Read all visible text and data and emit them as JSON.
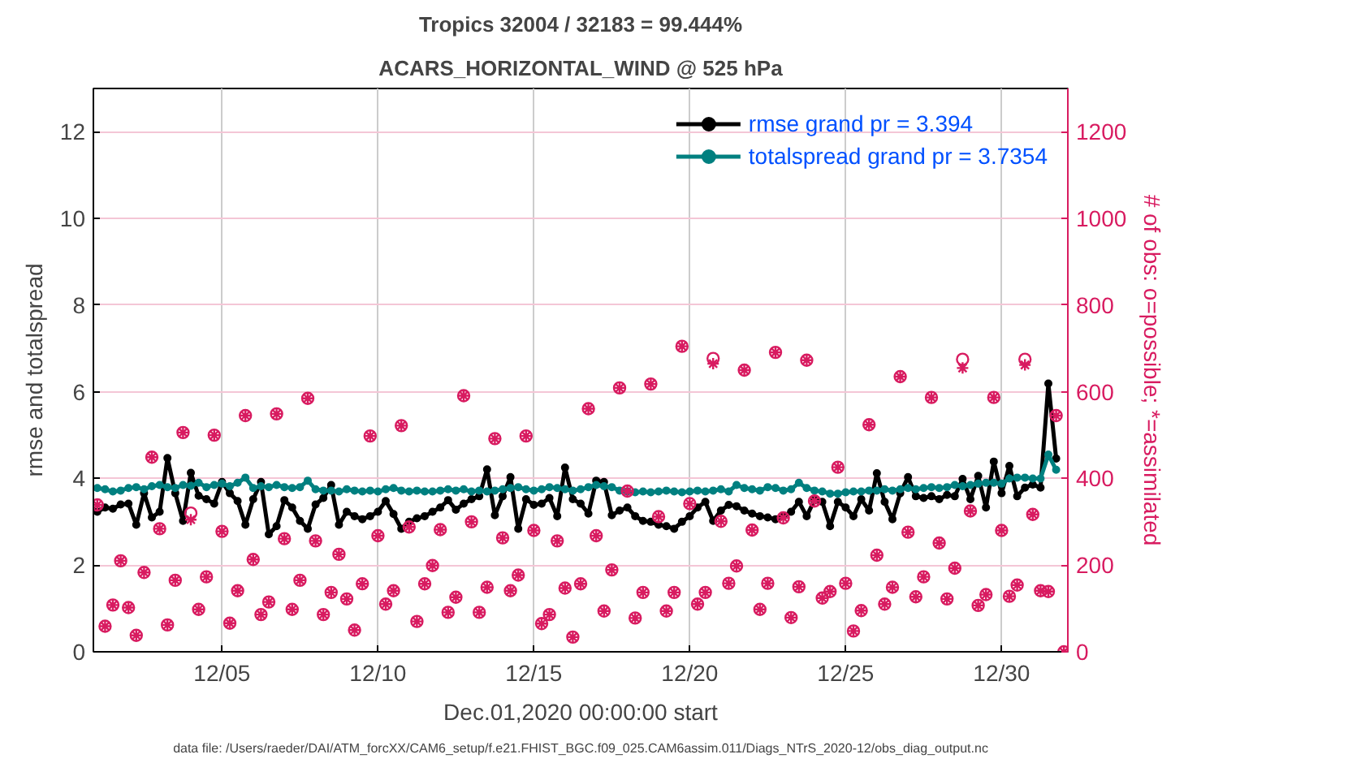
{
  "chart_data": {
    "type": "line",
    "title": "Tropics 32004 / 32183 = 99.444%",
    "subtitle": "ACARS_HORIZONTAL_WIND @ 525 hPa",
    "xlabel": "Dec.01,2020 00:00:00 start",
    "ylabel": "rmse and totalspread",
    "y2label": "# of obs: o=possible; *=assimilated",
    "annotations": [
      "data file: /Users/raeder/DAI/ATM_forcXX/CAM6_setup/f.e21.FHIST_BGC.f09_025.CAM6assim.011/Diags_NTrS_2020-12/obs_diag_output.nc"
    ],
    "x": [
      "2020-12-01T00:00",
      "2020-12-01T06:00",
      "2020-12-01T12:00",
      "2020-12-01T18:00",
      "2020-12-02T00:00",
      "2020-12-02T06:00",
      "2020-12-02T12:00",
      "2020-12-02T18:00",
      "2020-12-03T00:00",
      "2020-12-03T06:00",
      "2020-12-03T12:00",
      "2020-12-03T18:00",
      "2020-12-04T00:00",
      "2020-12-04T06:00",
      "2020-12-04T12:00",
      "2020-12-04T18:00",
      "2020-12-05T00:00",
      "2020-12-05T06:00",
      "2020-12-05T12:00",
      "2020-12-05T18:00",
      "2020-12-06T00:00",
      "2020-12-06T06:00",
      "2020-12-06T12:00",
      "2020-12-06T18:00",
      "2020-12-07T00:00",
      "2020-12-07T06:00",
      "2020-12-07T12:00",
      "2020-12-07T18:00",
      "2020-12-08T00:00",
      "2020-12-08T06:00",
      "2020-12-08T12:00",
      "2020-12-08T18:00",
      "2020-12-09T00:00",
      "2020-12-09T06:00",
      "2020-12-09T12:00",
      "2020-12-09T18:00",
      "2020-12-10T00:00",
      "2020-12-10T06:00",
      "2020-12-10T12:00",
      "2020-12-10T18:00",
      "2020-12-11T00:00",
      "2020-12-11T06:00",
      "2020-12-11T12:00",
      "2020-12-11T18:00",
      "2020-12-12T00:00",
      "2020-12-12T06:00",
      "2020-12-12T12:00",
      "2020-12-12T18:00",
      "2020-12-13T00:00",
      "2020-12-13T06:00",
      "2020-12-13T12:00",
      "2020-12-13T18:00",
      "2020-12-14T00:00",
      "2020-12-14T06:00",
      "2020-12-14T12:00",
      "2020-12-14T18:00",
      "2020-12-15T00:00",
      "2020-12-15T06:00",
      "2020-12-15T12:00",
      "2020-12-15T18:00",
      "2020-12-16T00:00",
      "2020-12-16T06:00",
      "2020-12-16T12:00",
      "2020-12-16T18:00",
      "2020-12-17T00:00",
      "2020-12-17T06:00",
      "2020-12-17T12:00",
      "2020-12-17T18:00",
      "2020-12-18T00:00",
      "2020-12-18T06:00",
      "2020-12-18T12:00",
      "2020-12-18T18:00",
      "2020-12-19T00:00",
      "2020-12-19T06:00",
      "2020-12-19T12:00",
      "2020-12-19T18:00",
      "2020-12-20T00:00",
      "2020-12-20T06:00",
      "2020-12-20T12:00",
      "2020-12-20T18:00",
      "2020-12-21T00:00",
      "2020-12-21T06:00",
      "2020-12-21T12:00",
      "2020-12-21T18:00",
      "2020-12-22T00:00",
      "2020-12-22T06:00",
      "2020-12-22T12:00",
      "2020-12-22T18:00",
      "2020-12-23T00:00",
      "2020-12-23T06:00",
      "2020-12-23T12:00",
      "2020-12-23T18:00",
      "2020-12-24T00:00",
      "2020-12-24T06:00",
      "2020-12-24T12:00",
      "2020-12-24T18:00",
      "2020-12-25T00:00",
      "2020-12-25T06:00",
      "2020-12-25T12:00",
      "2020-12-25T18:00",
      "2020-12-26T00:00",
      "2020-12-26T06:00",
      "2020-12-26T12:00",
      "2020-12-26T18:00",
      "2020-12-27T00:00",
      "2020-12-27T06:00",
      "2020-12-27T12:00",
      "2020-12-27T18:00",
      "2020-12-28T00:00",
      "2020-12-28T06:00",
      "2020-12-28T12:00",
      "2020-12-28T18:00",
      "2020-12-29T00:00",
      "2020-12-29T06:00",
      "2020-12-29T12:00",
      "2020-12-29T18:00",
      "2020-12-30T00:00",
      "2020-12-30T06:00",
      "2020-12-30T12:00",
      "2020-12-30T18:00",
      "2020-12-31T00:00",
      "2020-12-31T06:00",
      "2020-12-31T12:00",
      "2020-12-31T18:00",
      "2021-01-01T00:00"
    ],
    "xlim": [
      "2020-11-30T21:00",
      "2021-01-01T03:00"
    ],
    "xticks": [
      {
        "value": "2020-12-05",
        "label": "12/05"
      },
      {
        "value": "2020-12-10",
        "label": "12/10"
      },
      {
        "value": "2020-12-15",
        "label": "12/15"
      },
      {
        "value": "2020-12-20",
        "label": "12/20"
      },
      {
        "value": "2020-12-25",
        "label": "12/25"
      },
      {
        "value": "2020-12-30",
        "label": "12/30"
      }
    ],
    "ylim": [
      0,
      13
    ],
    "yticks": [
      0,
      2,
      4,
      6,
      8,
      10,
      12
    ],
    "y2lim": [
      0,
      1300
    ],
    "y2ticks": [
      0,
      200,
      400,
      600,
      800,
      1000,
      1200
    ],
    "grid": true,
    "legend": "top right",
    "series": [
      {
        "name": "rmse grand pr = 3.394",
        "marker": "circle",
        "color": "#000000",
        "values": [
          3.23,
          3.33,
          3.3,
          3.4,
          3.42,
          2.93,
          3.66,
          3.1,
          3.23,
          4.47,
          3.66,
          3.02,
          4.13,
          3.6,
          3.52,
          3.42,
          3.92,
          3.66,
          3.48,
          2.93,
          3.52,
          3.92,
          2.71,
          2.9,
          3.5,
          3.33,
          3.02,
          2.84,
          3.4,
          3.55,
          3.85,
          2.93,
          3.23,
          3.13,
          3.06,
          3.13,
          3.23,
          3.48,
          3.18,
          2.84,
          3.0,
          3.08,
          3.13,
          3.23,
          3.33,
          3.5,
          3.28,
          3.42,
          3.52,
          3.59,
          4.21,
          3.15,
          3.59,
          4.03,
          2.84,
          3.52,
          3.39,
          3.42,
          3.55,
          3.13,
          4.25,
          3.52,
          3.42,
          3.19,
          3.95,
          3.92,
          3.15,
          3.26,
          3.33,
          3.13,
          3.02,
          3.0,
          2.93,
          2.9,
          2.84,
          3.0,
          3.13,
          3.33,
          3.46,
          3.02,
          3.26,
          3.39,
          3.36,
          3.26,
          3.19,
          3.13,
          3.1,
          3.06,
          3.13,
          3.23,
          3.46,
          3.13,
          3.5,
          3.46,
          2.9,
          3.46,
          3.33,
          3.13,
          3.52,
          3.26,
          4.12,
          3.46,
          3.06,
          3.66,
          4.03,
          3.59,
          3.55,
          3.59,
          3.52,
          3.62,
          3.59,
          3.99,
          3.52,
          4.06,
          3.33,
          4.39,
          3.66,
          4.29,
          3.59,
          3.79,
          3.86,
          3.79,
          6.19,
          4.46,
          null
        ]
      },
      {
        "name": "totalspread grand pr = 3.7354",
        "marker": "circle",
        "color": "#008080",
        "values": [
          3.78,
          3.75,
          3.7,
          3.72,
          3.78,
          3.8,
          3.75,
          3.82,
          3.85,
          3.8,
          3.78,
          3.85,
          3.83,
          3.9,
          3.8,
          3.85,
          3.88,
          3.82,
          3.9,
          4.02,
          3.78,
          3.82,
          3.8,
          3.85,
          3.8,
          3.78,
          3.8,
          3.95,
          3.75,
          3.72,
          3.72,
          3.7,
          3.75,
          3.72,
          3.7,
          3.72,
          3.7,
          3.75,
          3.78,
          3.72,
          3.7,
          3.72,
          3.7,
          3.7,
          3.72,
          3.75,
          3.72,
          3.75,
          3.7,
          3.72,
          3.7,
          3.72,
          3.75,
          3.78,
          3.8,
          3.75,
          3.72,
          3.75,
          3.8,
          3.78,
          3.75,
          3.72,
          3.75,
          3.8,
          3.85,
          3.82,
          3.8,
          3.72,
          3.7,
          3.68,
          3.7,
          3.68,
          3.7,
          3.72,
          3.7,
          3.68,
          3.7,
          3.72,
          3.7,
          3.72,
          3.75,
          3.7,
          3.85,
          3.78,
          3.75,
          3.72,
          3.8,
          3.78,
          3.72,
          3.75,
          3.9,
          3.78,
          3.72,
          3.7,
          3.65,
          3.65,
          3.68,
          3.7,
          3.7,
          3.72,
          3.72,
          3.75,
          3.72,
          3.75,
          3.78,
          3.75,
          3.78,
          3.8,
          3.78,
          3.8,
          3.85,
          3.82,
          3.85,
          3.88,
          3.9,
          3.9,
          3.88,
          4.0,
          4.02,
          4.02,
          4.0,
          4.0,
          4.55,
          4.2,
          null
        ]
      },
      {
        "type": "scatter",
        "axis": "y2",
        "marker": "circle",
        "color": "#d81b60",
        "values": [
          339,
          59,
          108,
          210,
          102,
          38,
          183,
          449,
          284,
          62,
          165,
          506,
          320,
          98,
          173,
          500,
          278,
          66,
          141,
          545,
          213,
          86,
          115,
          549,
          261,
          98,
          165,
          585,
          256,
          86,
          137,
          225,
          122,
          50,
          157,
          498,
          268,
          110,
          141,
          522,
          288,
          70,
          157,
          199,
          282,
          91,
          126,
          591,
          300,
          91,
          149,
          492,
          263,
          141,
          177,
          498,
          280,
          65,
          86,
          256,
          147,
          34,
          157,
          561,
          268,
          94,
          189,
          609,
          371,
          78,
          137,
          618,
          312,
          94,
          137,
          705,
          342,
          110,
          137,
          677,
          301,
          158,
          198,
          650,
          281,
          98,
          158,
          691,
          309,
          79,
          150,
          673,
          348,
          124,
          139,
          426,
          158,
          48,
          95,
          524,
          223,
          110,
          149,
          635,
          276,
          127,
          173,
          587,
          251,
          122,
          193,
          675,
          325,
          107,
          132,
          587,
          280,
          128,
          154,
          675,
          317,
          141,
          139,
          545,
          0
        ]
      },
      {
        "type": "scatter",
        "axis": "y2",
        "marker": "cross",
        "color": "#d81b60",
        "values": [
          339,
          59,
          108,
          210,
          102,
          38,
          183,
          449,
          284,
          62,
          165,
          506,
          305,
          98,
          173,
          500,
          278,
          66,
          141,
          545,
          213,
          86,
          115,
          549,
          261,
          98,
          165,
          585,
          256,
          86,
          137,
          225,
          122,
          50,
          157,
          498,
          268,
          110,
          141,
          522,
          288,
          70,
          157,
          199,
          282,
          91,
          126,
          591,
          300,
          91,
          149,
          492,
          263,
          141,
          177,
          498,
          280,
          65,
          86,
          256,
          147,
          34,
          157,
          561,
          268,
          94,
          189,
          609,
          371,
          78,
          137,
          618,
          312,
          94,
          137,
          705,
          342,
          110,
          137,
          665,
          301,
          158,
          198,
          650,
          281,
          98,
          158,
          691,
          309,
          79,
          150,
          673,
          348,
          124,
          139,
          426,
          158,
          48,
          95,
          524,
          223,
          110,
          149,
          635,
          276,
          127,
          173,
          587,
          251,
          122,
          193,
          655,
          325,
          107,
          132,
          587,
          280,
          128,
          154,
          662,
          317,
          141,
          139,
          545,
          0
        ]
      }
    ]
  }
}
